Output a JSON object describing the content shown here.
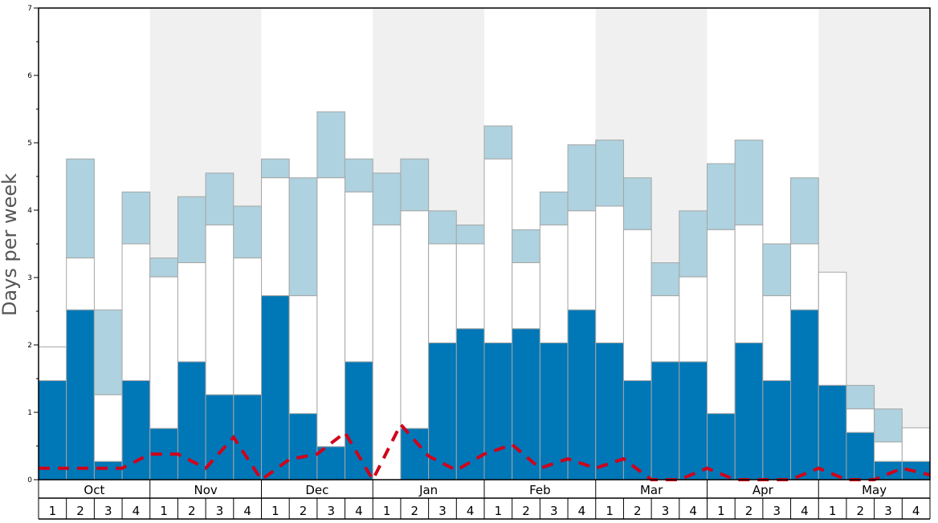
{
  "chart_data": {
    "type": "bar",
    "ylabel": "Days per week",
    "ylim": [
      0,
      7
    ],
    "yticks": [
      "0",
      "1",
      "2",
      "3",
      "4",
      "5",
      "6",
      "7"
    ],
    "months": [
      "Oct",
      "Nov",
      "Dec",
      "Jan",
      "Feb",
      "Mar",
      "Apr",
      "May"
    ],
    "week_labels": [
      "1",
      "2",
      "3",
      "4"
    ],
    "shaded_months": [
      "Nov",
      "Jan",
      "Mar",
      "May"
    ],
    "colors": {
      "bottom": "#0077b6",
      "middle": "#ffffff",
      "top": "#aed2df",
      "line": "#d0021b",
      "shade": "#f0f0f0",
      "bar_stroke": "#a6a6a6"
    },
    "stack_values": [
      {
        "week": "Oct 1",
        "bottom": 1.47,
        "middle_top": 1.97,
        "total": 1.97
      },
      {
        "week": "Oct 2",
        "bottom": 2.52,
        "middle_top": 3.29,
        "total": 4.76
      },
      {
        "week": "Oct 3",
        "bottom": 0.27,
        "middle_top": 1.26,
        "total": 2.52
      },
      {
        "week": "Oct 4",
        "bottom": 1.47,
        "middle_top": 3.5,
        "total": 4.27
      },
      {
        "week": "Nov 1",
        "bottom": 0.76,
        "middle_top": 3.01,
        "total": 3.29
      },
      {
        "week": "Nov 2",
        "bottom": 1.75,
        "middle_top": 3.22,
        "total": 4.2
      },
      {
        "week": "Nov 3",
        "bottom": 1.26,
        "middle_top": 3.78,
        "total": 4.55
      },
      {
        "week": "Nov 4",
        "bottom": 1.26,
        "middle_top": 3.29,
        "total": 4.06
      },
      {
        "week": "Dec 1",
        "bottom": 2.73,
        "middle_top": 4.48,
        "total": 4.76
      },
      {
        "week": "Dec 2",
        "bottom": 0.98,
        "middle_top": 2.73,
        "total": 4.48
      },
      {
        "week": "Dec 3",
        "bottom": 0.49,
        "middle_top": 4.48,
        "total": 5.46
      },
      {
        "week": "Dec 4",
        "bottom": 1.75,
        "middle_top": 4.27,
        "total": 4.76
      },
      {
        "week": "Jan 1",
        "bottom": 0,
        "middle_top": 3.78,
        "total": 4.55
      },
      {
        "week": "Jan 2",
        "bottom": 0.76,
        "middle_top": 3.99,
        "total": 4.76
      },
      {
        "week": "Jan 3",
        "bottom": 2.03,
        "middle_top": 3.5,
        "total": 3.99
      },
      {
        "week": "Jan 4",
        "bottom": 2.24,
        "middle_top": 3.5,
        "total": 3.78
      },
      {
        "week": "Feb 1",
        "bottom": 2.03,
        "middle_top": 4.76,
        "total": 5.25
      },
      {
        "week": "Feb 2",
        "bottom": 2.24,
        "middle_top": 3.22,
        "total": 3.71
      },
      {
        "week": "Feb 3",
        "bottom": 2.03,
        "middle_top": 3.78,
        "total": 4.27
      },
      {
        "week": "Feb 4",
        "bottom": 2.52,
        "middle_top": 3.99,
        "total": 4.97
      },
      {
        "week": "Mar 1",
        "bottom": 2.03,
        "middle_top": 4.06,
        "total": 5.04
      },
      {
        "week": "Mar 2",
        "bottom": 1.47,
        "middle_top": 3.71,
        "total": 4.48
      },
      {
        "week": "Mar 3",
        "bottom": 1.75,
        "middle_top": 2.73,
        "total": 3.22
      },
      {
        "week": "Mar 4",
        "bottom": 1.75,
        "middle_top": 3.01,
        "total": 3.99
      },
      {
        "week": "Apr 1",
        "bottom": 0.98,
        "middle_top": 3.71,
        "total": 4.69
      },
      {
        "week": "Apr 2",
        "bottom": 2.03,
        "middle_top": 3.78,
        "total": 5.04
      },
      {
        "week": "Apr 3",
        "bottom": 1.47,
        "middle_top": 2.73,
        "total": 3.5
      },
      {
        "week": "Apr 4",
        "bottom": 2.52,
        "middle_top": 3.5,
        "total": 4.48
      },
      {
        "week": "May 1",
        "bottom": 1.4,
        "middle_top": 3.08,
        "total": 3.08
      },
      {
        "week": "May 2",
        "bottom": 0.7,
        "middle_top": 1.05,
        "total": 1.4
      },
      {
        "week": "May 3",
        "bottom": 0.27,
        "middle_top": 0.56,
        "total": 1.05
      },
      {
        "week": "May 4",
        "bottom": 0.27,
        "middle_top": 0.77,
        "total": 0.77
      }
    ],
    "line_values": [
      0.17,
      0.17,
      0.17,
      0.17,
      0.38,
      0.38,
      0.17,
      0.63,
      0.0,
      0.3,
      0.38,
      0.7,
      0.0,
      0.82,
      0.35,
      0.14,
      0.38,
      0.52,
      0.17,
      0.31,
      0.17,
      0.31,
      0.0,
      0.0,
      0.17,
      0.0,
      0.0,
      0.0,
      0.17,
      0.0,
      0.0,
      0.17,
      0.07
    ]
  }
}
